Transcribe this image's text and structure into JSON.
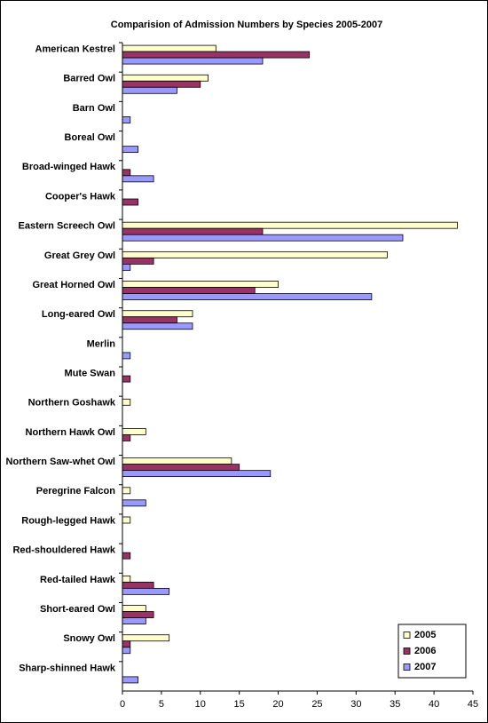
{
  "chart_data": {
    "type": "hbar",
    "title": "Comparision of Admission Numbers by Species 2005-2007",
    "categories": [
      "American Kestrel",
      "Barred Owl",
      "Barn Owl",
      "Boreal Owl",
      "Broad-winged Hawk",
      "Cooper's Hawk",
      "Eastern Screech Owl",
      "Great Grey Owl",
      "Great Horned Owl",
      "Long-eared Owl",
      "Merlin",
      "Mute Swan",
      "Northern Goshawk",
      "Northern Hawk Owl",
      "Northern Saw-whet Owl",
      "Peregrine Falcon",
      "Rough-legged Hawk",
      "Red-shouldered Hawk",
      "Red-tailed Hawk",
      "Short-eared Owl",
      "Snowy Owl",
      "Sharp-shinned Hawk"
    ],
    "series": [
      {
        "name": "2005",
        "color": "#ffffcc",
        "values": [
          12,
          11,
          0,
          0,
          0,
          0,
          43,
          34,
          20,
          9,
          0,
          0,
          1,
          3,
          14,
          1,
          1,
          0,
          1,
          3,
          6,
          0
        ]
      },
      {
        "name": "2006",
        "color": "#993366",
        "values": [
          24,
          10,
          0,
          0,
          1,
          2,
          18,
          4,
          17,
          7,
          0,
          1,
          0,
          1,
          15,
          0,
          0,
          1,
          4,
          4,
          1,
          0
        ]
      },
      {
        "name": "2007",
        "color": "#9999ff",
        "values": [
          18,
          7,
          1,
          2,
          4,
          0,
          36,
          1,
          32,
          9,
          1,
          0,
          0,
          0,
          19,
          3,
          0,
          0,
          6,
          3,
          1,
          2
        ]
      }
    ],
    "xlim": [
      0,
      45
    ],
    "xticks": [
      0,
      5,
      10,
      15,
      20,
      25,
      30,
      35,
      40,
      45
    ],
    "legend": "lower right"
  }
}
